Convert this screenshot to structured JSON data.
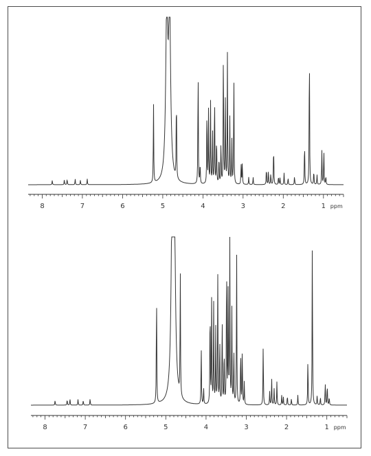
{
  "chart_data": [
    {
      "type": "line",
      "title": "",
      "xlabel": "ppm",
      "ylabel": "",
      "x_axis_reversed": true,
      "xlim": [
        8.35,
        0.5
      ],
      "x_ticks": [
        8,
        7,
        6,
        5,
        4,
        3,
        2,
        1
      ],
      "x_tick_labels": [
        "8",
        "7",
        "6",
        "5",
        "4",
        "3",
        "2",
        "1"
      ],
      "unit_label": "ppm",
      "line_color": "#333333",
      "peaks": [
        {
          "ppm": 7.75,
          "h": 0.03
        },
        {
          "ppm": 7.45,
          "h": 0.035
        },
        {
          "ppm": 7.38,
          "h": 0.04
        },
        {
          "ppm": 7.18,
          "h": 0.04
        },
        {
          "ppm": 7.05,
          "h": 0.03
        },
        {
          "ppm": 6.88,
          "h": 0.04
        },
        {
          "ppm": 5.23,
          "h": 0.55
        },
        {
          "ppm": 4.9,
          "h": 1.15,
          "w": 0.03
        },
        {
          "ppm": 4.83,
          "h": 1.15,
          "w": 0.03
        },
        {
          "ppm": 4.66,
          "h": 0.62
        },
        {
          "ppm": 4.12,
          "h": 0.84
        },
        {
          "ppm": 4.07,
          "h": 0.15
        },
        {
          "ppm": 3.9,
          "h": 0.55
        },
        {
          "ppm": 3.86,
          "h": 0.5
        },
        {
          "ppm": 3.81,
          "h": 0.56
        },
        {
          "ppm": 3.76,
          "h": 0.38
        },
        {
          "ppm": 3.71,
          "h": 0.66
        },
        {
          "ppm": 3.66,
          "h": 0.35
        },
        {
          "ppm": 3.6,
          "h": 0.2
        },
        {
          "ppm": 3.55,
          "h": 0.3
        },
        {
          "ppm": 3.49,
          "h": 0.98
        },
        {
          "ppm": 3.44,
          "h": 0.6
        },
        {
          "ppm": 3.39,
          "h": 0.88
        },
        {
          "ppm": 3.33,
          "h": 0.45
        },
        {
          "ppm": 3.28,
          "h": 0.3
        },
        {
          "ppm": 3.23,
          "h": 0.77
        },
        {
          "ppm": 3.05,
          "h": 0.14
        },
        {
          "ppm": 3.02,
          "h": 0.16
        },
        {
          "ppm": 2.86,
          "h": 0.05
        },
        {
          "ppm": 2.75,
          "h": 0.05
        },
        {
          "ppm": 2.42,
          "h": 0.12
        },
        {
          "ppm": 2.37,
          "h": 0.1
        },
        {
          "ppm": 2.31,
          "h": 0.08
        },
        {
          "ppm": 2.24,
          "h": 0.28
        },
        {
          "ppm": 2.12,
          "h": 0.06
        },
        {
          "ppm": 2.08,
          "h": 0.05
        },
        {
          "ppm": 1.98,
          "h": 0.08
        },
        {
          "ppm": 1.88,
          "h": 0.05
        },
        {
          "ppm": 1.72,
          "h": 0.06
        },
        {
          "ppm": 1.47,
          "h": 0.31
        },
        {
          "ppm": 1.35,
          "h": 1.0
        },
        {
          "ppm": 1.24,
          "h": 0.1
        },
        {
          "ppm": 1.16,
          "h": 0.07
        },
        {
          "ppm": 1.04,
          "h": 0.24
        },
        {
          "ppm": 0.99,
          "h": 0.25
        },
        {
          "ppm": 0.94,
          "h": 0.06
        }
      ]
    },
    {
      "type": "line",
      "title": "",
      "xlabel": "ppm",
      "ylabel": "",
      "x_axis_reversed": true,
      "xlim": [
        8.35,
        0.5
      ],
      "x_ticks": [
        8,
        7,
        6,
        5,
        4,
        3,
        2,
        1
      ],
      "x_tick_labels": [
        "8",
        "7",
        "6",
        "5",
        "4",
        "3",
        "2",
        "1"
      ],
      "unit_label": "ppm",
      "line_color": "#333333",
      "peaks": [
        {
          "ppm": 7.75,
          "h": 0.03
        },
        {
          "ppm": 7.45,
          "h": 0.035
        },
        {
          "ppm": 7.38,
          "h": 0.04
        },
        {
          "ppm": 7.18,
          "h": 0.035
        },
        {
          "ppm": 7.05,
          "h": 0.03
        },
        {
          "ppm": 6.88,
          "h": 0.04
        },
        {
          "ppm": 5.23,
          "h": 0.7
        },
        {
          "ppm": 4.84,
          "h": 1.15,
          "w": 0.03
        },
        {
          "ppm": 4.79,
          "h": 1.15,
          "w": 0.03
        },
        {
          "ppm": 4.64,
          "h": 0.77
        },
        {
          "ppm": 4.12,
          "h": 0.36
        },
        {
          "ppm": 4.06,
          "h": 0.1
        },
        {
          "ppm": 3.9,
          "h": 0.64
        },
        {
          "ppm": 3.86,
          "h": 0.67
        },
        {
          "ppm": 3.81,
          "h": 0.6
        },
        {
          "ppm": 3.76,
          "h": 0.45
        },
        {
          "ppm": 3.71,
          "h": 0.82
        },
        {
          "ppm": 3.66,
          "h": 0.42
        },
        {
          "ppm": 3.6,
          "h": 0.55
        },
        {
          "ppm": 3.55,
          "h": 0.35
        },
        {
          "ppm": 3.49,
          "h": 0.95
        },
        {
          "ppm": 3.45,
          "h": 0.75
        },
        {
          "ppm": 3.41,
          "h": 1.0
        },
        {
          "ppm": 3.36,
          "h": 0.6
        },
        {
          "ppm": 3.31,
          "h": 0.35
        },
        {
          "ppm": 3.24,
          "h": 0.91
        },
        {
          "ppm": 3.14,
          "h": 0.35
        },
        {
          "ppm": 3.1,
          "h": 0.34
        },
        {
          "ppm": 3.05,
          "h": 0.14
        },
        {
          "ppm": 2.58,
          "h": 0.37
        },
        {
          "ppm": 2.42,
          "h": 0.08
        },
        {
          "ppm": 2.37,
          "h": 0.16
        },
        {
          "ppm": 2.31,
          "h": 0.1
        },
        {
          "ppm": 2.24,
          "h": 0.14
        },
        {
          "ppm": 2.12,
          "h": 0.06
        },
        {
          "ppm": 2.08,
          "h": 0.05
        },
        {
          "ppm": 1.98,
          "h": 0.06
        },
        {
          "ppm": 1.88,
          "h": 0.04
        },
        {
          "ppm": 1.72,
          "h": 0.06
        },
        {
          "ppm": 1.47,
          "h": 0.29
        },
        {
          "ppm": 1.36,
          "h": 1.0
        },
        {
          "ppm": 1.24,
          "h": 0.06
        },
        {
          "ppm": 1.16,
          "h": 0.05
        },
        {
          "ppm": 1.04,
          "h": 0.14
        },
        {
          "ppm": 0.99,
          "h": 0.13
        },
        {
          "ppm": 0.94,
          "h": 0.05
        }
      ]
    }
  ]
}
